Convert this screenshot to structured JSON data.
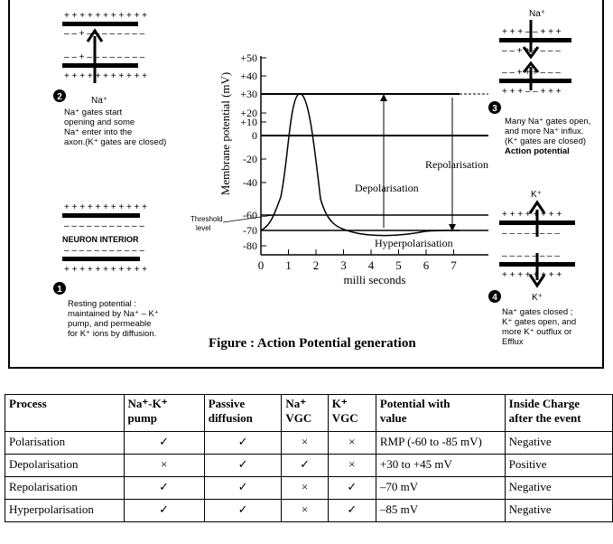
{
  "figure": {
    "caption": "Figure : Action Potential generation",
    "graph": {
      "y_axis_label": "Membrane potential (mV)",
      "x_axis_label": "milli seconds",
      "y_ticks": [
        "+50",
        "+40",
        "+30",
        "+20",
        "+10",
        "0",
        "-20",
        "-40",
        "-60",
        "-70",
        "-80"
      ],
      "x_ticks": [
        "0",
        "1",
        "2",
        "3",
        "4",
        "5",
        "6",
        "7"
      ],
      "threshold_label": "Threshold\nlevel",
      "depolarisation_label": "Depolarisation",
      "repolarisation_label": "Repolarisation",
      "hyperpolarisation_label": "Hyperpolarisation"
    },
    "step1": {
      "number": "1",
      "title": "NEURON INTERIOR",
      "note": "Resting potential :\nmaintained by Na⁺ – K⁺\npump, and permeable\nfor K⁺ ions by diffusion.",
      "plus_row": "+ + + + + + + + + + +",
      "minus_row": "– – – – – – – – – – –"
    },
    "step2": {
      "number": "2",
      "ion": "Na⁺",
      "note": "Na⁺ gates start\nopening and some\nNa⁺ enter into the\naxon.(K⁺ gates are closed)",
      "plus_row": "+ + + + + + + + + + +",
      "mixed_row": "– – + – – – – – – – –"
    },
    "step3": {
      "number": "3",
      "ion": "Na⁺",
      "note": "Many Na⁺ gates open,\nand more Na⁺ influx.\n(K⁺ gates are closed)",
      "note_bold": "Action potential",
      "plus_row": "+ + + – – + + +",
      "mixed_row": "– – + + + – – –"
    },
    "step4": {
      "number": "4",
      "ion_top": "K⁺",
      "ion_bottom": "K⁺",
      "note": "Na⁺ gates closed ;\nK⁺ gates open, and\nmore K⁺ outflux or\nEfflux",
      "plus_row": "+ + + + + + + +",
      "minus_row": "– – – – – – – –"
    }
  },
  "table": {
    "headers": [
      "Process",
      "Na⁺-K⁺\npump",
      "Passive\ndiffusion",
      "Na⁺\nVGC",
      "K⁺\nVGC",
      "Potential with\nvalue",
      "Inside Charge\nafter the event"
    ],
    "rows": [
      [
        "Polarisation",
        "✓",
        "✓",
        "×",
        "×",
        "RMP (-60 to -85 mV)",
        "Negative"
      ],
      [
        "Depolarisation",
        "×",
        "✓",
        "✓",
        "×",
        "+30 to +45 mV",
        "Positive"
      ],
      [
        "Repolarisation",
        "✓",
        "✓",
        "×",
        "✓",
        "–70 mV",
        "Negative"
      ],
      [
        "Hyperpolarisation",
        "✓",
        "✓",
        "×",
        "✓",
        "–85 mV",
        "Negative"
      ]
    ]
  }
}
